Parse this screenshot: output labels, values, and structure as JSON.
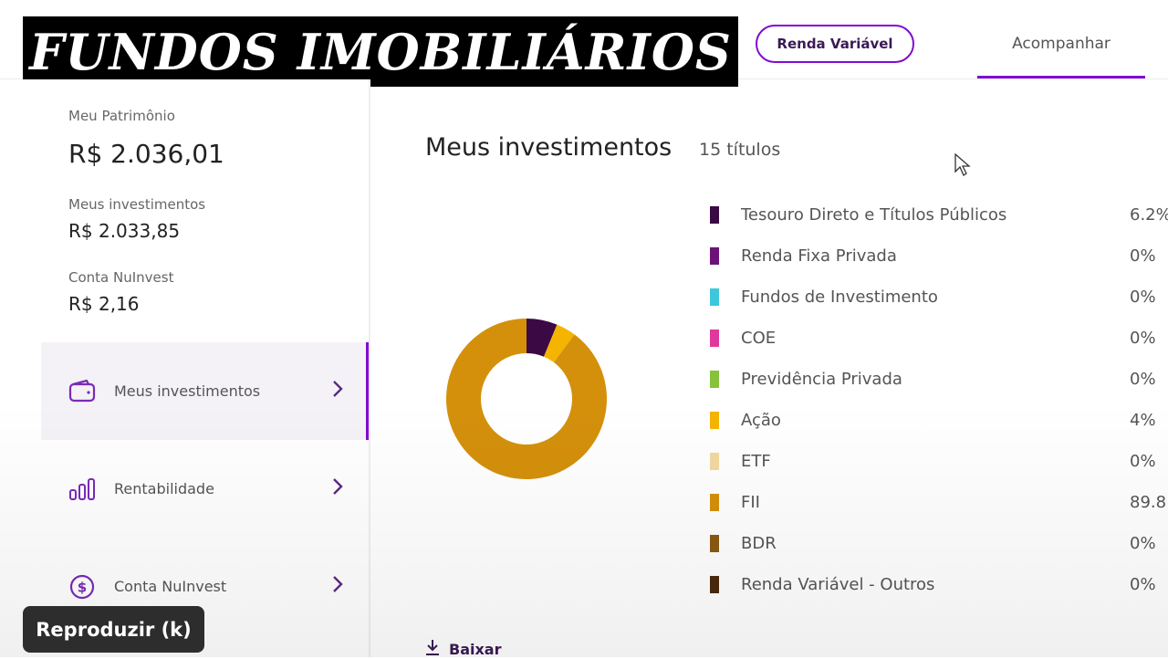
{
  "overlay": {
    "title": "FUNDOS IMOBILIÁRIOS"
  },
  "header": {
    "renda_variavel_label": "Renda Variável",
    "acompanhar_label": "Acompanhar"
  },
  "sidebar": {
    "patrimonio_label": "Meu Patrimônio",
    "patrimonio_value": "R$ 2.036,01",
    "investimentos_label": "Meus investimentos",
    "investimentos_value": "R$ 2.033,85",
    "conta_label": "Conta NuInvest",
    "conta_value": "R$ 2,16",
    "nav": [
      {
        "label": "Meus investimentos",
        "icon": "wallet-icon",
        "active": true
      },
      {
        "label": "Rentabilidade",
        "icon": "bar-chart-icon",
        "active": false
      },
      {
        "label": "Conta NuInvest",
        "icon": "dollar-coin-icon",
        "active": false
      }
    ]
  },
  "main": {
    "title": "Meus investimentos",
    "subtitle": "15 títulos",
    "download_label": "Baixar"
  },
  "chart_data": {
    "type": "pie",
    "donut": true,
    "categories": [
      "Tesouro Direto e Títulos Públicos",
      "Renda Fixa Privada",
      "Fundos de Investimento",
      "COE",
      "Previdência Privada",
      "Ação",
      "ETF",
      "FII",
      "BDR",
      "Renda Variável - Outros"
    ],
    "values": [
      6.2,
      0,
      0,
      0,
      0,
      4,
      0,
      89.8,
      0,
      0
    ],
    "labels": [
      "6.2%",
      "0%",
      "0%",
      "0%",
      "0%",
      "4%",
      "0%",
      "89.8",
      "0%",
      "0%"
    ],
    "colors": [
      "#3b0a45",
      "#6b1177",
      "#3ec6dc",
      "#e0389c",
      "#86c23a",
      "#f5b400",
      "#f1d9a0",
      "#d4900b",
      "#8a5a10",
      "#4a2a0a"
    ]
  },
  "tooltip": {
    "label": "Reproduzir (k)"
  }
}
